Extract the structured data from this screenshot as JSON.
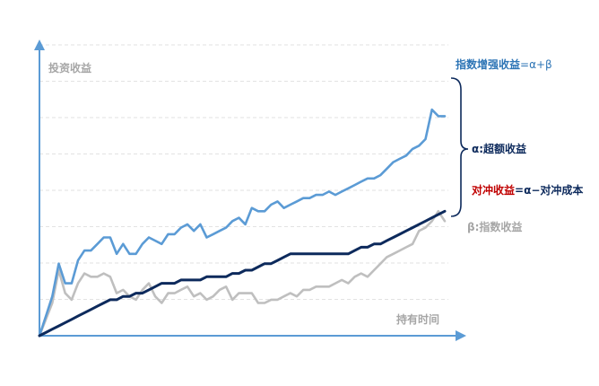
{
  "chart_data": {
    "type": "line",
    "title": "",
    "xlabel": "持有时间",
    "ylabel": "投资收益",
    "grid": true,
    "x": [
      0,
      1,
      2,
      3,
      4,
      5,
      6,
      7,
      8,
      9,
      10,
      11,
      12,
      13,
      14,
      15,
      16,
      17,
      18,
      19,
      20,
      21,
      22,
      23,
      24,
      25,
      26,
      27,
      28,
      29,
      30,
      31,
      32,
      33,
      34,
      35,
      36,
      37,
      38,
      39,
      40,
      41,
      42,
      43,
      44,
      45,
      46,
      47,
      48,
      49,
      50,
      51,
      52,
      53,
      54,
      55,
      56,
      57,
      58,
      59,
      60,
      61,
      62,
      63
    ],
    "ylim": [
      0,
      80
    ],
    "series": [
      {
        "name": "指数增强收益=α+β",
        "color": "#5b9bd5",
        "values": [
          0,
          6,
          12,
          22,
          16,
          16,
          23,
          26,
          26,
          28,
          30,
          30,
          25,
          28,
          25,
          25,
          28,
          30,
          29,
          28,
          31,
          31,
          33,
          34,
          32,
          34,
          30,
          31,
          32,
          33,
          35,
          36,
          34,
          39,
          38,
          38,
          40,
          41,
          39,
          40,
          41,
          42,
          42,
          43,
          43,
          44,
          43,
          44,
          45,
          46,
          47,
          48,
          48,
          49,
          51,
          53,
          54,
          55,
          57,
          58,
          60,
          69,
          67,
          67
        ]
      },
      {
        "name": "对冲收益=α−对冲成本",
        "color": "#0d2a5c",
        "values": [
          0,
          1,
          2,
          3,
          4,
          5,
          6,
          7,
          8,
          9,
          10,
          11,
          11,
          12,
          12,
          13,
          13,
          14,
          15,
          16,
          16,
          16,
          17,
          17,
          17,
          17,
          18,
          18,
          18,
          18,
          19,
          19,
          20,
          20,
          21,
          22,
          22,
          23,
          24,
          25,
          25,
          25,
          25,
          25,
          25,
          25,
          25,
          25,
          25,
          26,
          27,
          27,
          28,
          28,
          29,
          30,
          31,
          32,
          33,
          34,
          35,
          36,
          37,
          38
        ]
      },
      {
        "name": "β:指数收益",
        "color": "#bfbfbf",
        "values": [
          0,
          5,
          10,
          20,
          13,
          11,
          16,
          19,
          18,
          18,
          19,
          18,
          13,
          14,
          12,
          11,
          14,
          16,
          12,
          10,
          13,
          13,
          14,
          15,
          12,
          13,
          11,
          12,
          14,
          15,
          11,
          13,
          13,
          13,
          10,
          10,
          11,
          11,
          12,
          13,
          12,
          14,
          14,
          15,
          15,
          15,
          16,
          17,
          16,
          18,
          19,
          18,
          20,
          22,
          24,
          25,
          26,
          27,
          28,
          32,
          33,
          35,
          38,
          35
        ]
      }
    ],
    "annotations": {
      "alpha_bracket": "α:超额收益"
    }
  },
  "colors": {
    "axis": "#5b9bd5",
    "grid": "#d9d9d9",
    "axis_label": "#a6a6a6",
    "highlight_red": "#c00000",
    "navy": "#0d2a5c"
  },
  "labels": {
    "enhanced_main": "指数增强收益",
    "enhanced_formula": "=α+β",
    "alpha": "α:超额收益",
    "hedge_main": "对冲收益",
    "hedge_formula": "=α−对冲成本",
    "beta": "β:指数收益",
    "y_axis": "投资收益",
    "x_axis": "持有时间"
  }
}
